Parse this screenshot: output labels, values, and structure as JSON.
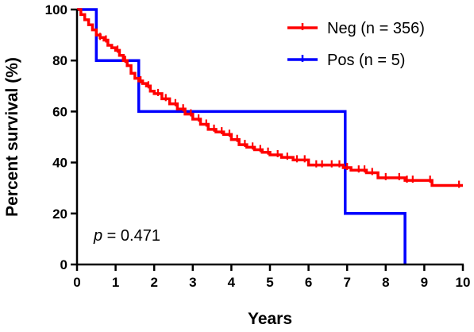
{
  "chart_data": {
    "type": "line",
    "subtype": "kaplan-meier step",
    "title": "",
    "xlabel": "Years",
    "ylabel": "Percent survival (%)",
    "xlim": [
      0,
      10
    ],
    "ylim": [
      0,
      100
    ],
    "xticks": [
      "0",
      "1",
      "2",
      "3",
      "4",
      "5",
      "6",
      "7",
      "8",
      "9",
      "10"
    ],
    "yticks": [
      "0",
      "20",
      "40",
      "60",
      "80",
      "100"
    ],
    "grid": false,
    "legend_position": "top-right",
    "annotation": {
      "p_symbol": "p",
      "p_text": " = 0.471"
    },
    "series": [
      {
        "name": "Neg (n = 356)",
        "color": "#ff0000",
        "x": [
          0,
          0.1,
          0.2,
          0.3,
          0.4,
          0.5,
          0.6,
          0.7,
          0.8,
          0.9,
          1.0,
          1.1,
          1.2,
          1.3,
          1.4,
          1.5,
          1.6,
          1.7,
          1.8,
          1.9,
          2.0,
          2.2,
          2.4,
          2.6,
          2.8,
          3.0,
          3.2,
          3.4,
          3.6,
          3.8,
          4.0,
          4.2,
          4.4,
          4.6,
          4.8,
          5.0,
          5.3,
          5.6,
          6.0,
          6.5,
          6.9,
          7.1,
          7.5,
          7.8,
          8.5,
          9.2,
          10.0
        ],
        "y": [
          100,
          98,
          96,
          94,
          92,
          90,
          89,
          88,
          86,
          85,
          84,
          82,
          80,
          78,
          75,
          73,
          72,
          71,
          70,
          68,
          67,
          65,
          63,
          61,
          59,
          57,
          55,
          53,
          52,
          51,
          49,
          47,
          46,
          45,
          44,
          43,
          42,
          41,
          39,
          39,
          38,
          37,
          36,
          34,
          33,
          31,
          31
        ],
        "censor_x": [
          0.6,
          0.75,
          1.05,
          1.25,
          1.65,
          1.85,
          2.1,
          2.3,
          2.55,
          2.75,
          2.95,
          3.15,
          3.35,
          3.55,
          3.75,
          3.95,
          4.15,
          4.35,
          4.55,
          4.75,
          4.95,
          5.2,
          5.45,
          5.7,
          5.9,
          6.2,
          6.35,
          6.6,
          6.8,
          7.0,
          7.3,
          7.45,
          7.65,
          8.0,
          8.35,
          8.55,
          8.7,
          9.15,
          9.9
        ]
      },
      {
        "name": "Pos (n = 5)",
        "color": "#0000ff",
        "x": [
          0,
          0.5,
          1.6,
          6.95,
          8.5,
          8.5
        ],
        "y": [
          100,
          80,
          60,
          20,
          0,
          0
        ],
        "censor_x": []
      }
    ]
  }
}
